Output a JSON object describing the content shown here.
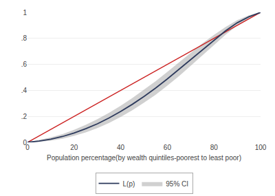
{
  "chart_data": {
    "type": "line",
    "xlabel": "Population percentage(by wealth quintiles-poorest to least poor)",
    "x": [
      0,
      5,
      10,
      15,
      20,
      25,
      30,
      35,
      40,
      45,
      50,
      55,
      60,
      65,
      70,
      75,
      80,
      85,
      90,
      95,
      100
    ],
    "series": [
      {
        "name": "95% CI",
        "type": "band",
        "color": "#aaaaaa",
        "lower": [
          0,
          0.004,
          0.013,
          0.028,
          0.05,
          0.077,
          0.11,
          0.15,
          0.196,
          0.248,
          0.305,
          0.367,
          0.436,
          0.509,
          0.588,
          0.667,
          0.748,
          0.828,
          0.9,
          0.954,
          1.0
        ],
        "upper": [
          0,
          0.018,
          0.038,
          0.063,
          0.096,
          0.135,
          0.178,
          0.228,
          0.282,
          0.341,
          0.404,
          0.471,
          0.542,
          0.615,
          0.688,
          0.76,
          0.827,
          0.888,
          0.94,
          0.978,
          1.0
        ]
      },
      {
        "type": "line",
        "color": "#cc2222",
        "x": [
          0,
          100
        ],
        "values": [
          0,
          1
        ]
      },
      {
        "name": "L(p)",
        "type": "line",
        "color": "#2d3a5c",
        "values": [
          0,
          0.01,
          0.025,
          0.045,
          0.072,
          0.105,
          0.143,
          0.188,
          0.238,
          0.293,
          0.353,
          0.418,
          0.488,
          0.562,
          0.638,
          0.714,
          0.788,
          0.858,
          0.92,
          0.966,
          1.0
        ]
      }
    ],
    "xlim": [
      0,
      100
    ],
    "ylim": [
      0,
      1
    ],
    "xticks": [
      0,
      20,
      40,
      60,
      80,
      100
    ],
    "yticks": [
      0,
      {
        "value": 0.2,
        "label": ".2"
      },
      {
        "value": 0.4,
        "label": ".4"
      },
      {
        "value": 0.6,
        "label": ".6"
      },
      {
        "value": 0.8,
        "label": ".8"
      },
      1
    ],
    "grid": true,
    "legend": "bottom"
  }
}
